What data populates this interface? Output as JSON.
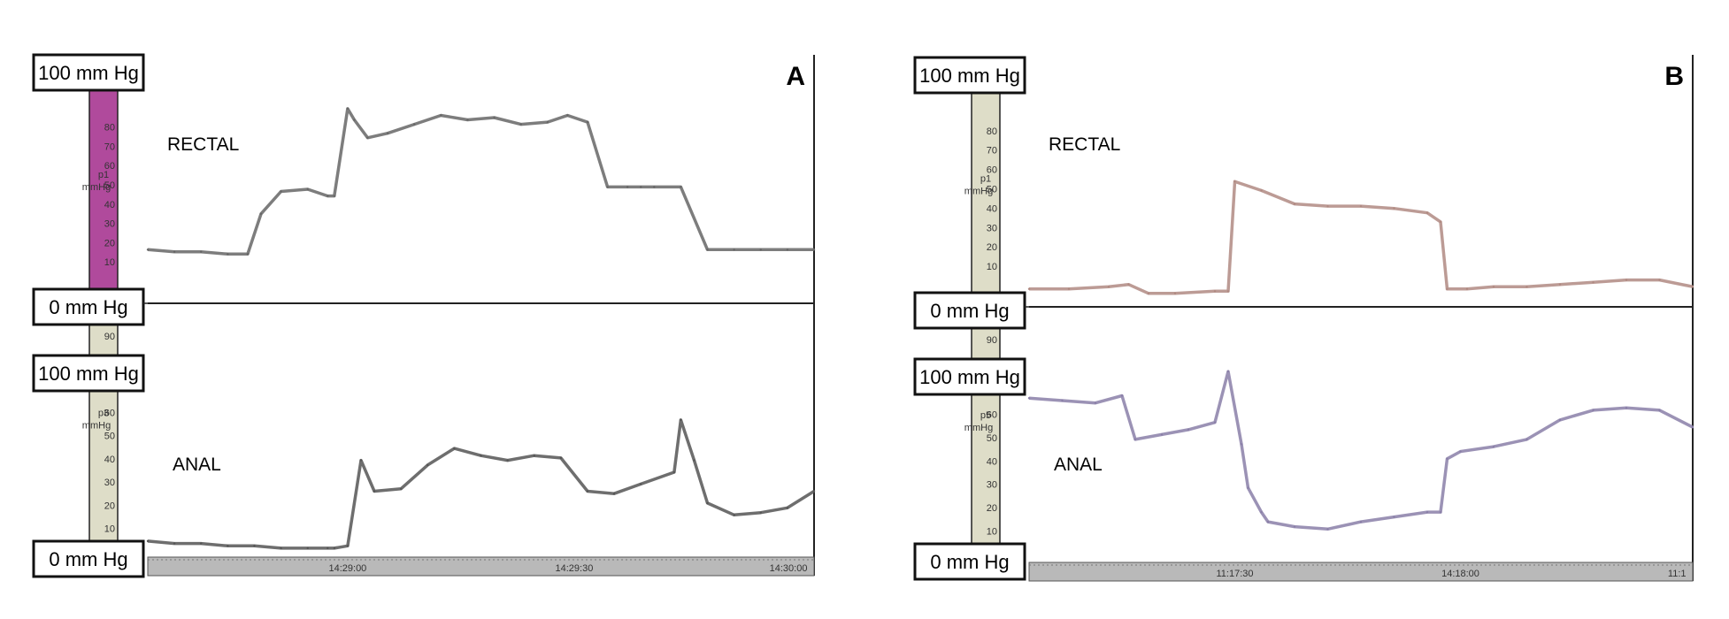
{
  "panels": [
    {
      "letter": "A",
      "scale_max_label": "100 mm Hg",
      "scale_min_label": "0 mm Hg",
      "time_ticks": [
        "14:29:00",
        "14:29:30",
        "14:30:00"
      ],
      "time_tick_frac": [
        0.3,
        0.64,
        0.99
      ],
      "top_channel": {
        "label": "RECTAL",
        "axis_name": "p1",
        "axis_unit": "mmHg",
        "ticks": [
          "10",
          "20",
          "30",
          "40",
          "50",
          "60",
          "70",
          "80"
        ],
        "bar_color": "#b04a9c",
        "line_color": "#666666"
      },
      "bottom_channel": {
        "label": "ANAL",
        "axis_name": "p3",
        "axis_unit": "mmHg",
        "ticks": [
          "10",
          "20",
          "30",
          "40",
          "50",
          "60"
        ],
        "extra_tick": "90",
        "bar_color": "#deddc8",
        "line_color": "#555555"
      }
    },
    {
      "letter": "B",
      "scale_max_label": "100 mm Hg",
      "scale_min_label": "0 mm Hg",
      "time_ticks": [
        "11:17:30",
        "14:18:00",
        "11:1"
      ],
      "time_tick_frac": [
        0.31,
        0.65,
        0.99
      ],
      "top_channel": {
        "label": "RECTAL",
        "axis_name": "p1",
        "axis_unit": "mmHg",
        "ticks": [
          "10",
          "20",
          "30",
          "40",
          "50",
          "60",
          "70",
          "80"
        ],
        "bar_color": "#deddc8",
        "line_color": "#b08a82"
      },
      "bottom_channel": {
        "label": "ANAL",
        "axis_name": "p5",
        "axis_unit": "mmHg",
        "ticks": [
          "10",
          "20",
          "30",
          "40",
          "50",
          "60"
        ],
        "extra_tick": "90",
        "bar_color": "#deddc8",
        "line_color": "#8a7fa8"
      }
    }
  ],
  "chart_data": [
    {
      "type": "line",
      "title": "A",
      "xlabel": "",
      "ylabel": "mmHg",
      "x_tick_labels": [
        "14:29:00",
        "14:29:30",
        "14:30:00"
      ],
      "ylim": [
        0,
        100
      ],
      "grid": false,
      "series": [
        {
          "name": "RECTAL",
          "x": [
            0,
            0.04,
            0.08,
            0.12,
            0.15,
            0.17,
            0.2,
            0.24,
            0.27,
            0.28,
            0.3,
            0.31,
            0.33,
            0.36,
            0.4,
            0.44,
            0.48,
            0.52,
            0.56,
            0.6,
            0.63,
            0.66,
            0.69,
            0.72,
            0.74,
            0.76,
            0.8,
            0.84,
            0.88,
            0.92,
            0.96,
            1
          ],
          "y": [
            24,
            23,
            23,
            22,
            22,
            40,
            50,
            51,
            48,
            48,
            87,
            82,
            74,
            76,
            80,
            84,
            82,
            83,
            80,
            81,
            84,
            81,
            52,
            52,
            52,
            52,
            52,
            24,
            24,
            24,
            24,
            24
          ]
        },
        {
          "name": "ANAL",
          "x": [
            0,
            0.04,
            0.08,
            0.12,
            0.16,
            0.2,
            0.24,
            0.27,
            0.28,
            0.3,
            0.32,
            0.34,
            0.38,
            0.42,
            0.46,
            0.5,
            0.54,
            0.58,
            0.62,
            0.66,
            0.7,
            0.74,
            0.79,
            0.8,
            0.82,
            0.84,
            0.88,
            0.92,
            0.96,
            1
          ],
          "y": [
            6,
            5,
            5,
            4,
            4,
            3,
            3,
            3,
            3,
            4,
            40,
            27,
            28,
            38,
            45,
            42,
            40,
            42,
            41,
            27,
            26,
            30,
            35,
            57,
            40,
            22,
            17,
            18,
            20,
            27
          ]
        }
      ]
    },
    {
      "type": "line",
      "title": "B",
      "xlabel": "",
      "ylabel": "mmHg",
      "x_tick_labels": [
        "11:17:30",
        "14:18:00",
        "11:1"
      ],
      "ylim": [
        0,
        100
      ],
      "grid": false,
      "series": [
        {
          "name": "RECTAL",
          "x": [
            0,
            0.06,
            0.12,
            0.15,
            0.18,
            0.22,
            0.28,
            0.3,
            0.31,
            0.35,
            0.4,
            0.45,
            0.5,
            0.55,
            0.6,
            0.62,
            0.63,
            0.66,
            0.7,
            0.75,
            0.8,
            0.85,
            0.9,
            0.95,
            1
          ],
          "y": [
            8,
            8,
            9,
            10,
            6,
            6,
            7,
            7,
            56,
            52,
            46,
            45,
            45,
            44,
            42,
            38,
            8,
            8,
            9,
            9,
            10,
            11,
            12,
            12,
            9
          ]
        },
        {
          "name": "ANAL",
          "x": [
            0,
            0.05,
            0.1,
            0.14,
            0.16,
            0.2,
            0.24,
            0.28,
            0.3,
            0.32,
            0.33,
            0.35,
            0.36,
            0.4,
            0.45,
            0.5,
            0.55,
            0.6,
            0.62,
            0.63,
            0.65,
            0.7,
            0.75,
            0.8,
            0.85,
            0.9,
            0.95,
            1
          ],
          "y": [
            67,
            66,
            65,
            68,
            50,
            52,
            54,
            57,
            78,
            48,
            30,
            20,
            16,
            14,
            13,
            16,
            18,
            20,
            20,
            42,
            45,
            47,
            50,
            58,
            62,
            63,
            62,
            55
          ]
        }
      ]
    }
  ]
}
